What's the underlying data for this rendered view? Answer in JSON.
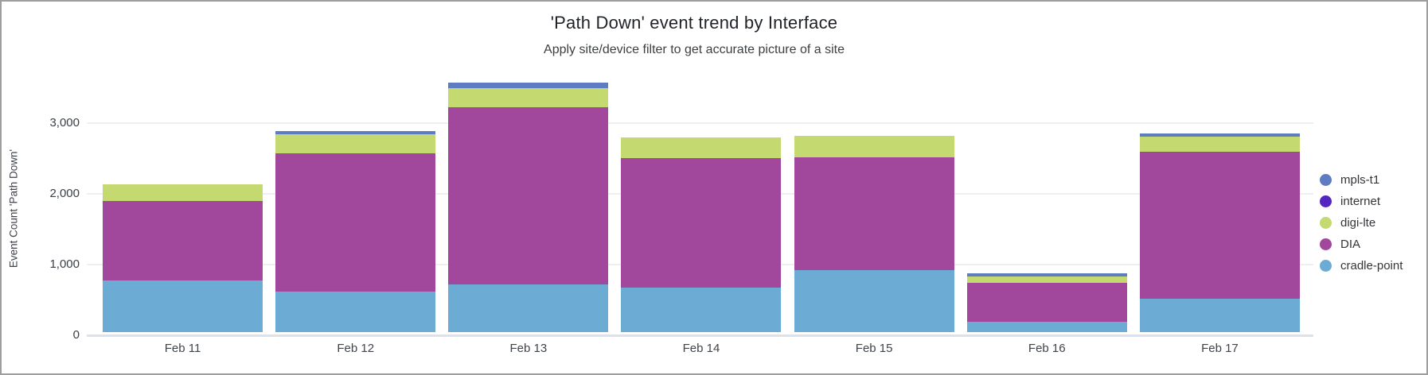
{
  "chart_data": {
    "type": "bar",
    "stacked": true,
    "title": "'Path Down' event trend by Interface",
    "subtitle": "Apply site/device filter to get accurate picture of a site",
    "ylabel": "Event Count 'Path Down'",
    "xlabel": "",
    "categories": [
      "Feb 11",
      "Feb 12",
      "Feb 13",
      "Feb 14",
      "Feb 15",
      "Feb 16",
      "Feb 17"
    ],
    "ylim": [
      0,
      3750
    ],
    "grid": true,
    "legend_position": "right",
    "yticks": [
      {
        "value": 0,
        "label": "0"
      },
      {
        "value": 1000,
        "label": "1,000"
      },
      {
        "value": 2000,
        "label": "2,000"
      },
      {
        "value": 3000,
        "label": "3,000"
      }
    ],
    "series": [
      {
        "name": "cradle-point",
        "color": "#6cacd4",
        "values": [
          730,
          570,
          680,
          635,
          875,
          145,
          475
        ]
      },
      {
        "name": "DIA",
        "color": "#a1489c",
        "values": [
          1130,
          1970,
          2510,
          1835,
          1600,
          555,
          2080
        ]
      },
      {
        "name": "digi-lte",
        "color": "#c4da70",
        "values": [
          235,
          265,
          265,
          295,
          310,
          90,
          220
        ]
      },
      {
        "name": "internet",
        "color": "#5228c0",
        "values": [
          0,
          0,
          0,
          0,
          0,
          0,
          0
        ]
      },
      {
        "name": "mpls-t1",
        "color": "#5d7cc2",
        "values": [
          0,
          45,
          85,
          0,
          0,
          45,
          45
        ]
      }
    ],
    "legend_order": [
      "mpls-t1",
      "internet",
      "digi-lte",
      "DIA",
      "cradle-point"
    ],
    "totals": [
      2095,
      2850,
      3540,
      2765,
      2785,
      835,
      2820
    ]
  }
}
